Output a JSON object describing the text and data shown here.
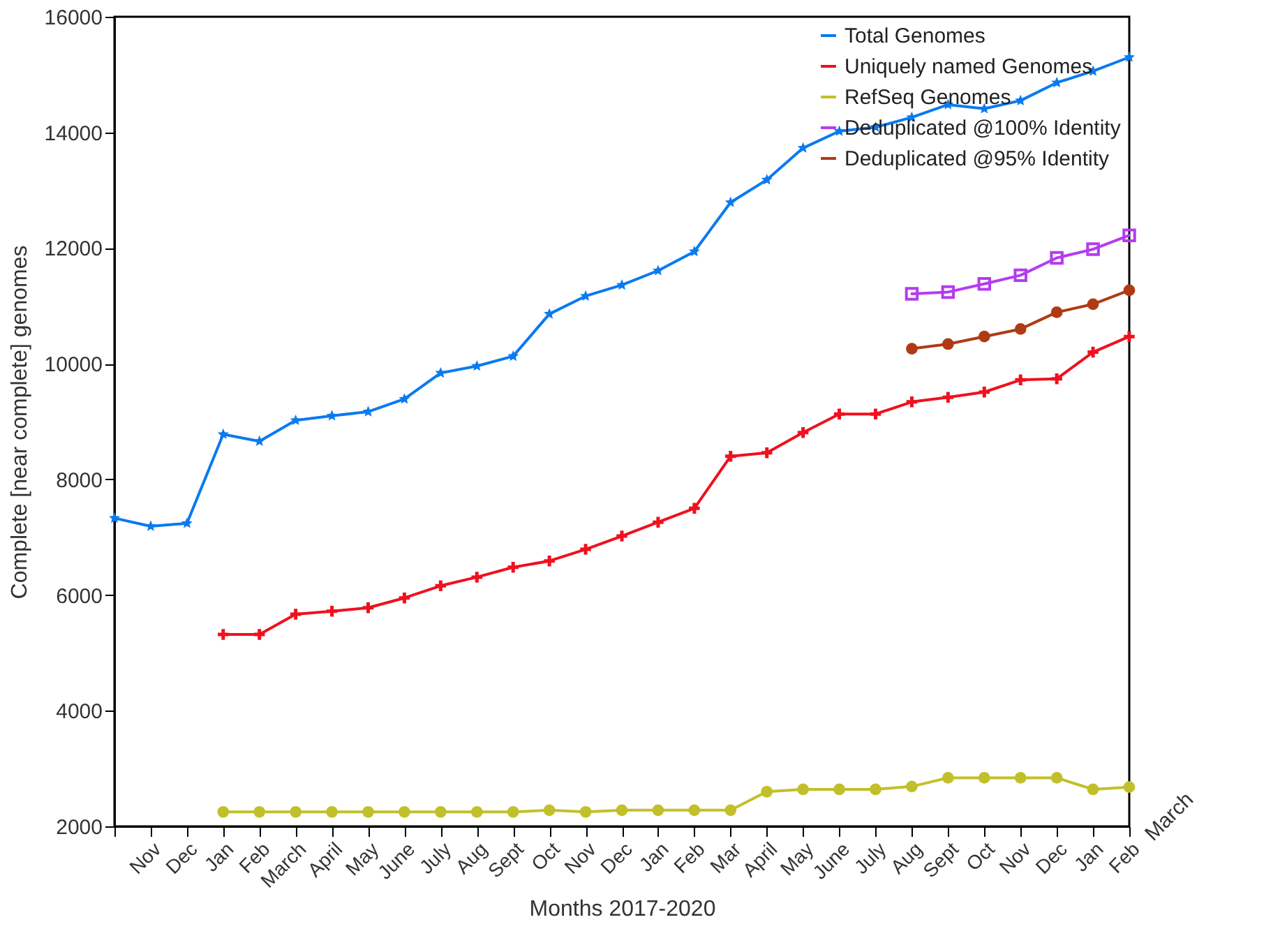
{
  "chart_data": {
    "type": "line",
    "xlabel": "Months 2017-2020",
    "ylabel": "Complete [near complete] genomes",
    "categories": [
      null,
      "Nov",
      "Dec",
      "Jan",
      "Feb",
      "March",
      "April",
      "May",
      "June",
      "July",
      "Aug",
      "Sept",
      "Oct",
      "Nov",
      "Dec",
      "Jan",
      "Feb",
      "Mar",
      "April",
      "May",
      "June",
      "July",
      "Aug",
      "Sept",
      "Oct",
      "Nov",
      "Dec",
      "Jan",
      "Feb"
    ],
    "annotations": [
      "March"
    ],
    "ylim": [
      2000,
      16000
    ],
    "yticks": [
      2000,
      4000,
      6000,
      8000,
      10000,
      12000,
      14000,
      16000
    ],
    "grid": false,
    "legend": "top right",
    "line_style": "solid",
    "series": [
      {
        "name": "Total Genomes",
        "color": "#0a7af0",
        "marker": "star",
        "values": [
          7330,
          7190,
          7240,
          8780,
          8660,
          9020,
          9100,
          9170,
          9390,
          9840,
          9960,
          10130,
          10860,
          11170,
          11360,
          11610,
          11940,
          12790,
          13180,
          13730,
          14020,
          14090,
          14260,
          14480,
          14410,
          14550,
          14860,
          15060,
          15300
        ]
      },
      {
        "name": "Uniquely named Genomes",
        "color": "#f0101e",
        "marker": "cross",
        "values": [
          null,
          null,
          null,
          5320,
          5320,
          5670,
          5720,
          5780,
          5950,
          6160,
          6310,
          6480,
          6590,
          6790,
          7020,
          7260,
          7500,
          8400,
          8460,
          8810,
          9130,
          9130,
          9340,
          9420,
          9510,
          9720,
          9740,
          10200,
          10470
        ]
      },
      {
        "name": "RefSeq Genomes",
        "color": "#c2c02a",
        "marker": "circle",
        "values": [
          null,
          null,
          null,
          2250,
          2250,
          2250,
          2250,
          2250,
          2250,
          2250,
          2250,
          2250,
          2280,
          2250,
          2280,
          2280,
          2280,
          2280,
          2600,
          2640,
          2640,
          2640,
          2690,
          2840,
          2840,
          2840,
          2840,
          2640,
          2680
        ]
      },
      {
        "name": "Deduplicated @100% Identity",
        "color": "#b43cf0",
        "marker": "square",
        "values": [
          null,
          null,
          null,
          null,
          null,
          null,
          null,
          null,
          null,
          null,
          null,
          null,
          null,
          null,
          null,
          null,
          null,
          null,
          null,
          null,
          null,
          null,
          11210,
          11240,
          11380,
          11530,
          11830,
          11980,
          12220
        ]
      },
      {
        "name": "Deduplicated @95% Identity",
        "color": "#b03a14",
        "marker": "circle",
        "values": [
          null,
          null,
          null,
          null,
          null,
          null,
          null,
          null,
          null,
          null,
          null,
          null,
          null,
          null,
          null,
          null,
          null,
          null,
          null,
          null,
          null,
          null,
          10260,
          10340,
          10470,
          10600,
          10890,
          11030,
          11270
        ]
      }
    ]
  }
}
